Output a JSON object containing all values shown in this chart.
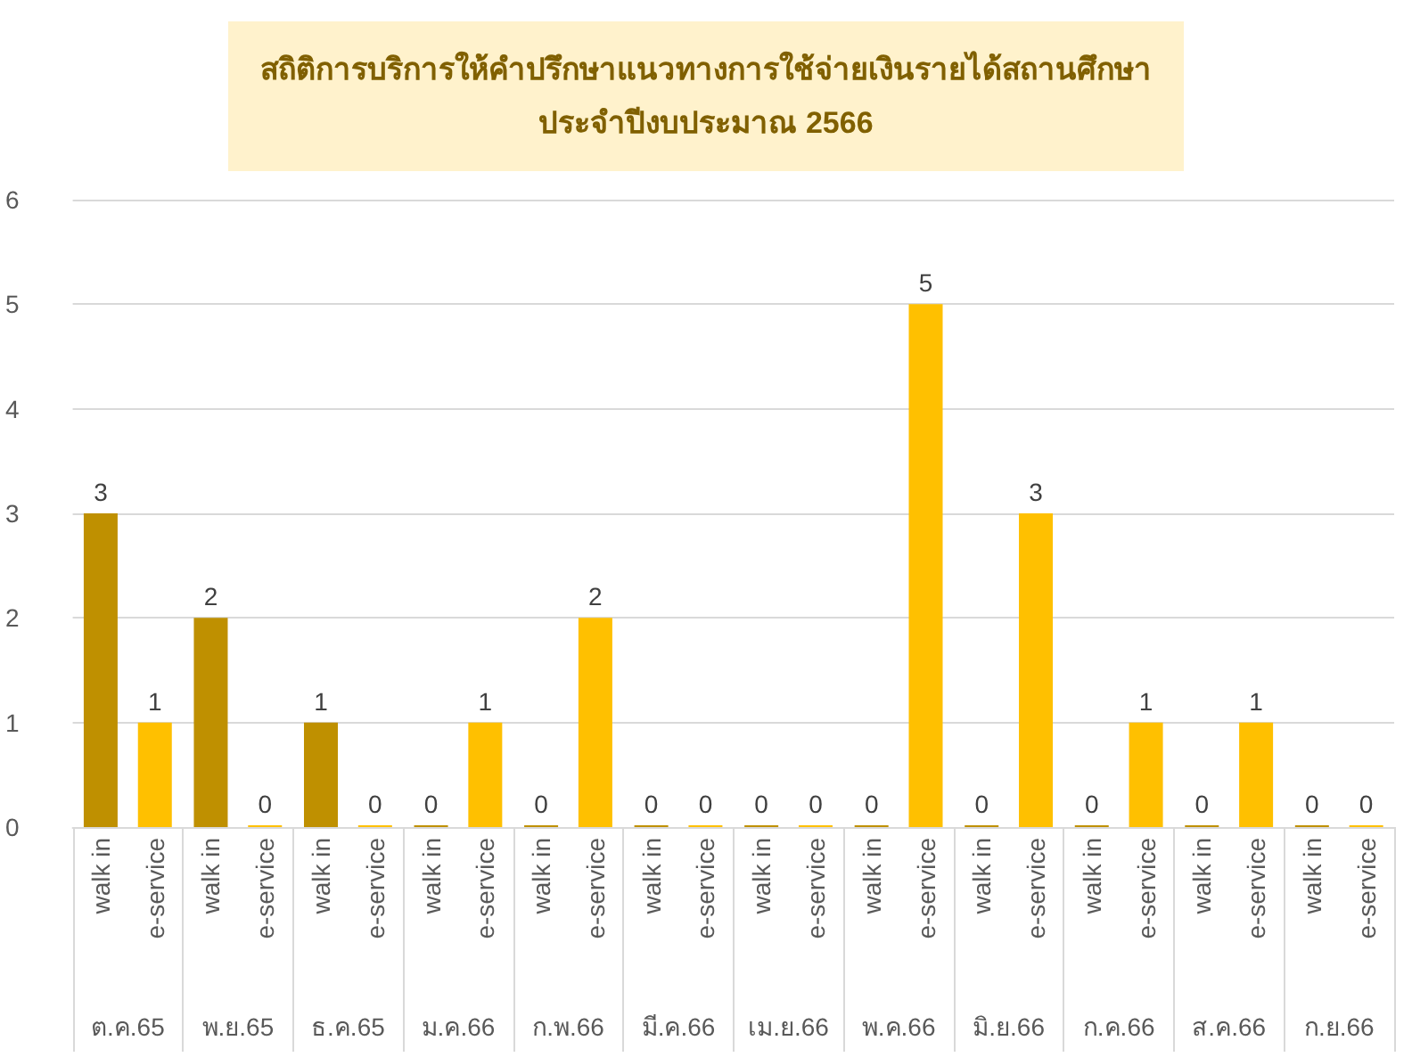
{
  "chart_data": {
    "type": "bar",
    "title": "สถิติการบริการให้คำปรึกษาแนวทางการใช้จ่ายเงินรายได้สถานศึกษา\nประจำปีงบประมาณ 2566",
    "categories": [
      "ต.ค.65",
      "พ.ย.65",
      "ธ.ค.65",
      "ม.ค.66",
      "ก.พ.66",
      "มี.ค.66",
      "เม.ย.66",
      "พ.ค.66",
      "มิ.ย.66",
      "ก.ค.66",
      "ส.ค.66",
      "ก.ย.66"
    ],
    "series": [
      {
        "name": "walk in",
        "color": "#bf9000",
        "values": [
          3,
          2,
          1,
          0,
          0,
          0,
          0,
          0,
          0,
          0,
          0,
          0
        ]
      },
      {
        "name": "e-service",
        "color": "#ffc000",
        "values": [
          1,
          0,
          0,
          1,
          2,
          0,
          0,
          5,
          3,
          1,
          1,
          0
        ]
      }
    ],
    "ylim": [
      0,
      6
    ],
    "yticks": [
      0,
      1,
      2,
      3,
      4,
      5,
      6
    ],
    "grid": "y",
    "legend": false,
    "data_labels": true
  }
}
